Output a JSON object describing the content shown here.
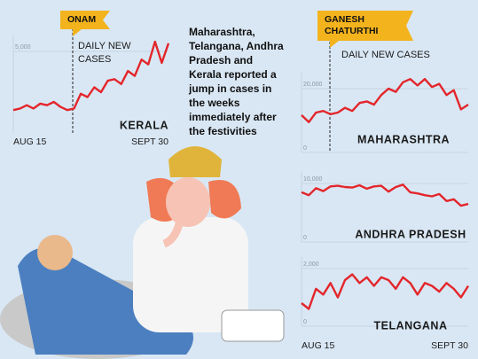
{
  "caption": [
    "Maharashtra,",
    "Telangana, Andhra",
    "Pradesh and",
    "Kerala reported a",
    "jump in cases in",
    "the weeks",
    "immediately after",
    "the festivities"
  ],
  "chart_data": [
    {
      "type": "line",
      "title": "KERALA",
      "event": "ONAM",
      "subtitle": [
        "DAILY NEW",
        "CASES"
      ],
      "categories": [
        "AUG 15",
        null,
        null,
        null,
        null,
        null,
        null,
        null,
        null,
        null,
        null,
        null,
        null,
        null,
        null,
        null,
        null,
        null,
        null,
        null,
        null,
        null,
        null,
        "SEPT 30"
      ],
      "series": [
        {
          "color": "#e3262b",
          "values": [
            1400,
            1500,
            1700,
            1500,
            1800,
            1700,
            1900,
            1600,
            1400,
            1500,
            2400,
            2200,
            2800,
            2500,
            3200,
            3300,
            3000,
            3800,
            3500,
            4500,
            4200,
            5600,
            4300,
            5500
          ]
        }
      ],
      "ylim": [
        0,
        6000
      ],
      "yticks": [
        {
          "value": 5000,
          "label": "5,000"
        }
      ],
      "grid": true
    },
    {
      "type": "line",
      "title": "MAHARASHTRA",
      "event": [
        "GANESH",
        "CHATURTHI"
      ],
      "subtitle": [
        "DAILY NEW CASES"
      ],
      "categories": [
        null,
        null,
        null,
        null,
        null,
        null,
        null,
        null,
        null,
        null,
        null,
        null,
        null,
        null,
        null,
        null,
        null,
        null,
        null,
        null,
        null,
        null,
        null,
        null
      ],
      "series": [
        {
          "color": "#e3262b",
          "values": [
            11700,
            9500,
            12500,
            13000,
            12000,
            12500,
            14000,
            13000,
            15500,
            16000,
            15000,
            18000,
            20000,
            19000,
            22000,
            23000,
            21000,
            23000,
            20500,
            21500,
            18000,
            19500,
            13500,
            15000
          ]
        }
      ],
      "ylim": [
        0,
        25000
      ],
      "yticks": [
        0,
        {
          "value": 20000,
          "label": "20,000"
        }
      ],
      "grid": true
    },
    {
      "type": "line",
      "title": "ANDHRA PRADESH",
      "categories": [
        null,
        null,
        null,
        null,
        null,
        null,
        null,
        null,
        null,
        null,
        null,
        null,
        null,
        null,
        null,
        null,
        null,
        null,
        null,
        null,
        null,
        null,
        null,
        null
      ],
      "series": [
        {
          "color": "#e3262b",
          "values": [
            8500,
            8000,
            9200,
            8700,
            9500,
            9600,
            9400,
            9300,
            9700,
            9100,
            9500,
            9600,
            8600,
            9400,
            9800,
            8500,
            8300,
            8000,
            7800,
            8200,
            7000,
            7300,
            6200,
            6500
          ]
        }
      ],
      "ylim": [
        0,
        12000
      ],
      "yticks": [
        0,
        {
          "value": 10000,
          "label": "10,000"
        }
      ],
      "grid": true
    },
    {
      "type": "line",
      "title": "TELANGANA",
      "categories": [
        "AUG 15",
        null,
        null,
        null,
        null,
        null,
        null,
        null,
        null,
        null,
        null,
        null,
        null,
        null,
        null,
        null,
        null,
        null,
        null,
        null,
        null,
        null,
        null,
        "SEPT 30"
      ],
      "series": [
        {
          "color": "#e3262b",
          "values": [
            800,
            600,
            1300,
            1100,
            1500,
            1000,
            1600,
            1800,
            1500,
            1700,
            1400,
            1700,
            1600,
            1300,
            1700,
            1500,
            1100,
            1500,
            1400,
            1200,
            1500,
            1300,
            1000,
            1400
          ]
        }
      ],
      "ylim": [
        0,
        2400
      ],
      "yticks": [
        0,
        {
          "value": 2000,
          "label": "2,000"
        }
      ],
      "grid": true
    }
  ]
}
